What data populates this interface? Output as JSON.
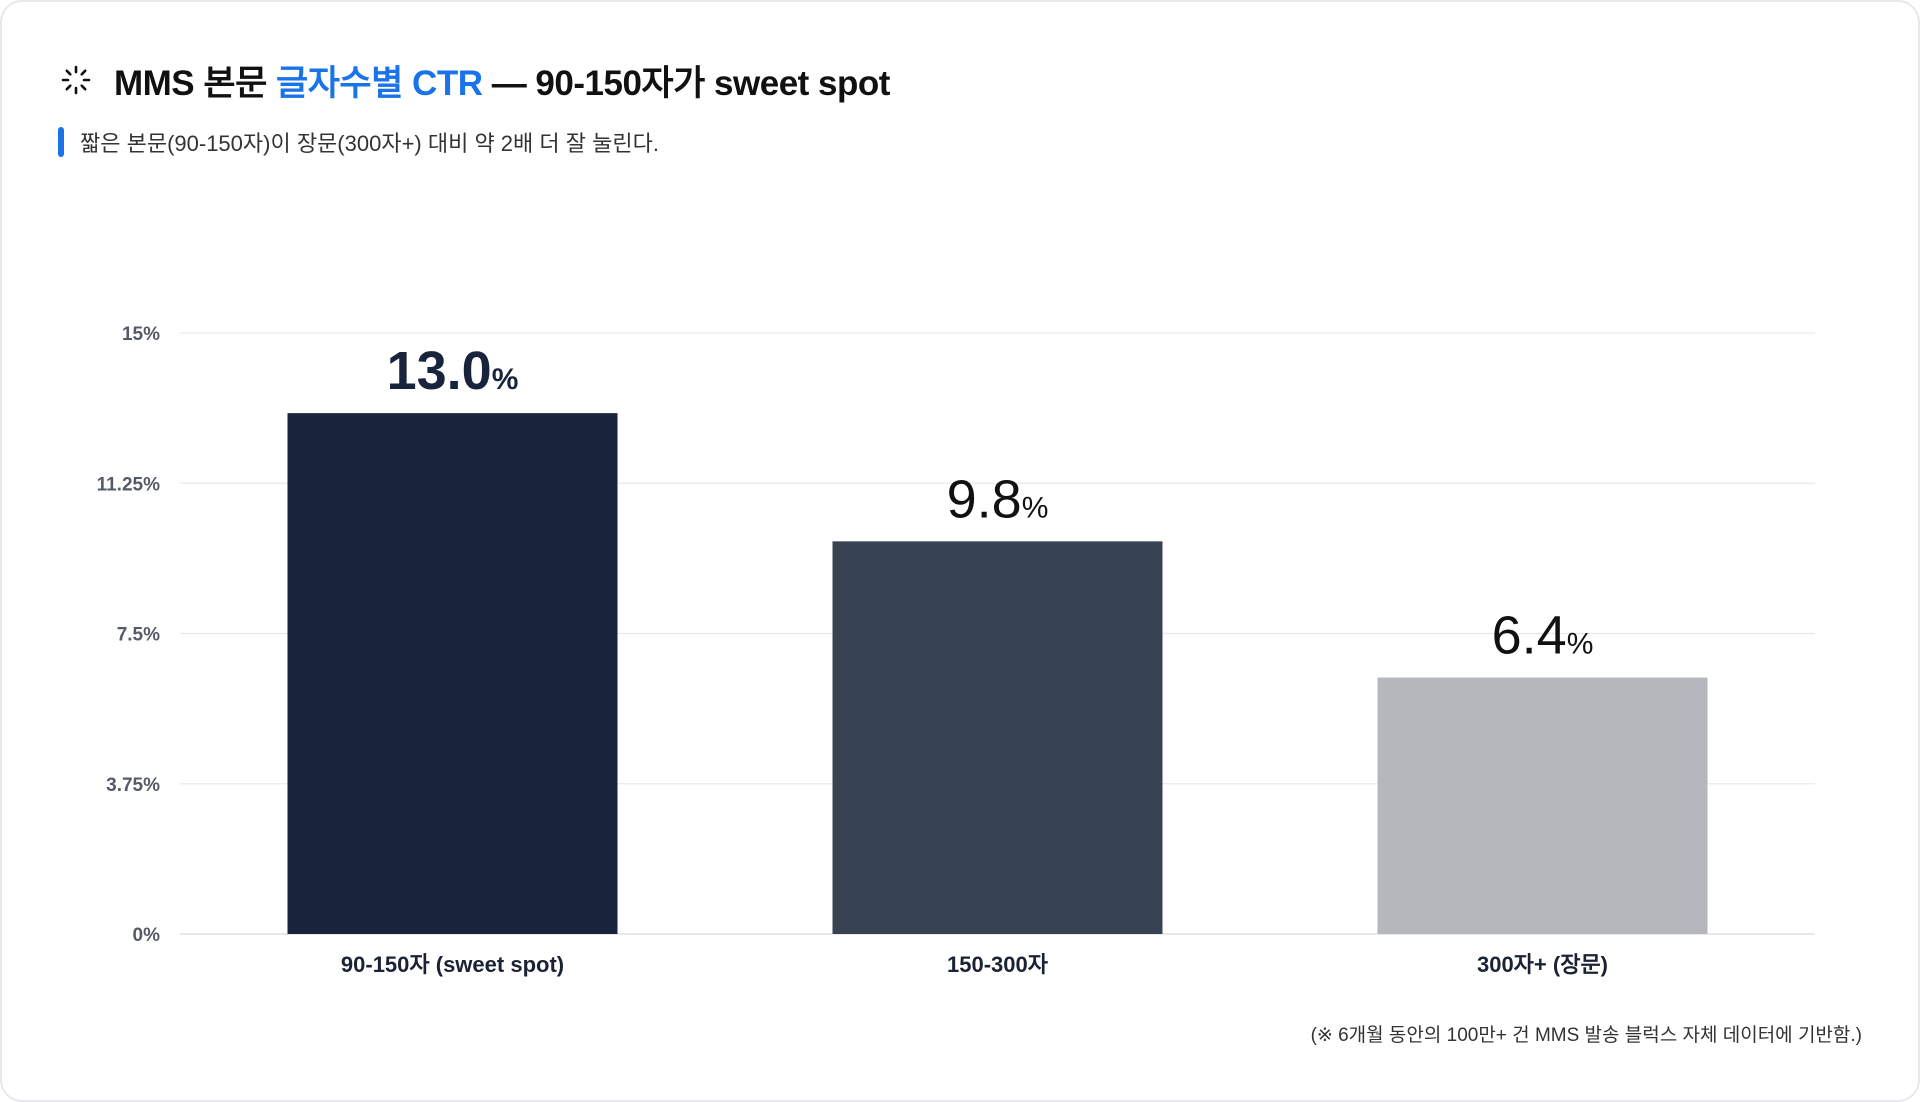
{
  "header": {
    "title_prefix": "MMS 본문 ",
    "title_accent": "글자수별 CTR",
    "title_suffix": " — 90-150자가 sweet spot",
    "subtitle": "짧은 본문(90-150자)이 장문(300자+) 대비 약 2배 더 잘 눌린다.",
    "icon": "spinner-icon"
  },
  "footnote": "(※ 6개월 동안의 100만+ 건 MMS 발송 블럭스 자체 데이터에 기반함.)",
  "colors": {
    "accent": "#1a73e8",
    "bars": [
      "#18243b",
      "#374353",
      "#b6b7bd"
    ],
    "grid": "#e8e9ec",
    "tick_text": "#555b66",
    "label_text": "#1a2233"
  },
  "chart_data": {
    "type": "bar",
    "categories": [
      "90-150자 (sweet spot)",
      "150-300자",
      "300자+ (장문)"
    ],
    "values": [
      13.0,
      9.8,
      6.4
    ],
    "value_labels": [
      "13.0",
      "9.8",
      "6.4"
    ],
    "value_unit": "%",
    "yticks": [
      0,
      3.75,
      7.5,
      11.25,
      15
    ],
    "ytick_labels": [
      "0%",
      "3.75%",
      "7.5%",
      "11.25%",
      "15%"
    ],
    "ylim": [
      0,
      15
    ],
    "grid": true
  }
}
